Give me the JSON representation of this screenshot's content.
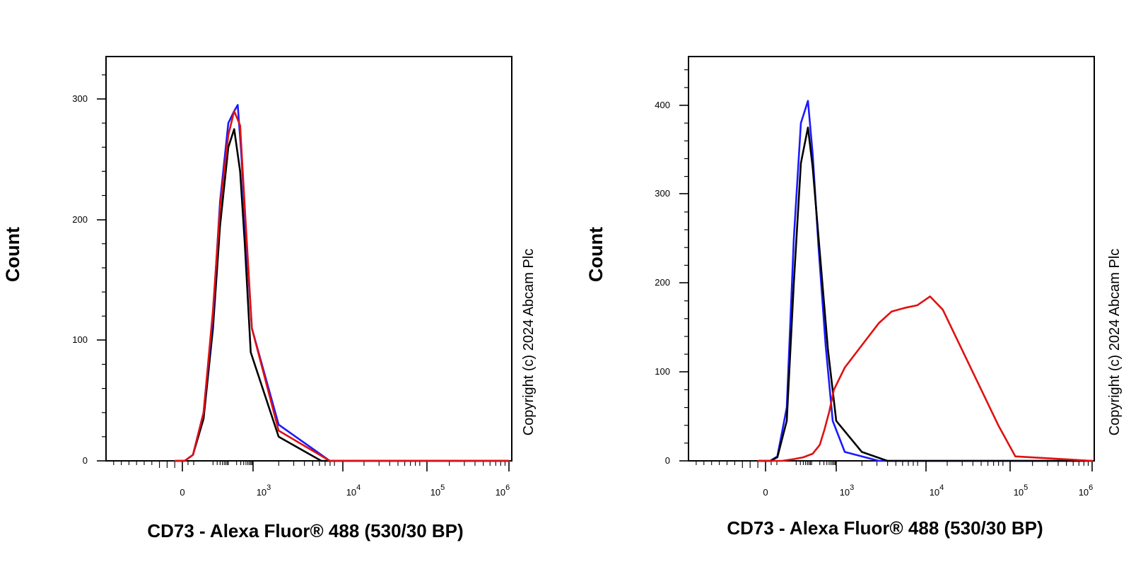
{
  "chart_data": [
    {
      "type": "line",
      "title": "",
      "xlabel": "CD73 - Alexa Fluor® 488 (530/30 BP)",
      "ylabel": "Count",
      "ylim": [
        0,
        330
      ],
      "y_ticks": [
        0,
        100,
        200,
        300
      ],
      "y_tick_labels": [
        "0",
        "100",
        "200",
        "300"
      ],
      "x_scale": "biexponential",
      "x_tick_labels": [
        {
          "label": "0",
          "pos": 0
        },
        {
          "base": "10",
          "exp": "3",
          "pos": 3
        },
        {
          "base": "10",
          "exp": "4",
          "pos": 4
        },
        {
          "base": "10",
          "exp": "5",
          "pos": 5
        },
        {
          "base": "10",
          "exp": "6",
          "pos": 6
        }
      ],
      "copyright": "Copyright (c) 2024 Abcam Plc",
      "grid": false,
      "series": [
        {
          "name": "black",
          "color": "#000000",
          "x": [
            -0.3,
            0.1,
            0.45,
            0.9,
            1.3,
            1.6,
            1.95,
            2.2,
            2.45,
            2.65,
            2.9,
            3.3,
            3.8,
            6
          ],
          "y": [
            0,
            0,
            5,
            35,
            110,
            195,
            260,
            275,
            240,
            180,
            90,
            20,
            0,
            0
          ]
        },
        {
          "name": "blue",
          "color": "#1a1aff",
          "x": [
            -0.3,
            0.1,
            0.45,
            0.9,
            1.3,
            1.6,
            1.95,
            2.2,
            2.35,
            2.5,
            2.7,
            2.95,
            3.3,
            3.9,
            6
          ],
          "y": [
            0,
            0,
            5,
            40,
            120,
            215,
            280,
            290,
            295,
            255,
            185,
            110,
            30,
            0,
            0
          ]
        },
        {
          "name": "red",
          "color": "#e01010",
          "x": [
            -0.3,
            0.1,
            0.45,
            0.9,
            1.3,
            1.6,
            1.95,
            2.2,
            2.45,
            2.65,
            2.95,
            3.3,
            3.9,
            6
          ],
          "y": [
            0,
            0,
            5,
            40,
            125,
            210,
            270,
            290,
            278,
            210,
            110,
            25,
            0,
            0
          ]
        }
      ]
    },
    {
      "type": "line",
      "title": "",
      "xlabel": "CD73 - Alexa Fluor® 488 (530/30 BP)",
      "ylabel": "Count",
      "ylim": [
        0,
        450
      ],
      "y_ticks": [
        0,
        100,
        200,
        300,
        400
      ],
      "y_tick_labels": [
        "0",
        "100",
        "200",
        "300",
        "400"
      ],
      "x_scale": "biexponential",
      "x_tick_labels": [
        {
          "label": "0",
          "pos": 0
        },
        {
          "base": "10",
          "exp": "3",
          "pos": 3
        },
        {
          "base": "10",
          "exp": "4",
          "pos": 4
        },
        {
          "base": "10",
          "exp": "5",
          "pos": 5
        },
        {
          "base": "10",
          "exp": "6",
          "pos": 6
        }
      ],
      "copyright": "Copyright (c) 2024 Abcam Plc",
      "grid": false,
      "series": [
        {
          "name": "blue",
          "color": "#1a1aff",
          "x": [
            -0.3,
            0.2,
            0.5,
            0.9,
            1.2,
            1.5,
            1.8,
            2.0,
            2.25,
            2.55,
            2.85,
            3.1,
            3.5,
            6
          ],
          "y": [
            0,
            0,
            5,
            60,
            250,
            380,
            405,
            345,
            240,
            130,
            45,
            10,
            0,
            0
          ]
        },
        {
          "name": "black",
          "color": "#000000",
          "x": [
            -0.3,
            0.2,
            0.5,
            0.9,
            1.2,
            1.5,
            1.8,
            2.0,
            2.3,
            2.65,
            3.0,
            3.3,
            3.6,
            6
          ],
          "y": [
            0,
            0,
            4,
            45,
            200,
            335,
            375,
            330,
            235,
            125,
            45,
            10,
            0,
            0
          ]
        },
        {
          "name": "red",
          "color": "#e01010",
          "x": [
            -0.3,
            0.7,
            1.2,
            1.6,
            2.0,
            2.3,
            2.5,
            2.7,
            2.9,
            3.1,
            3.3,
            3.5,
            3.65,
            3.8,
            3.95,
            4.1,
            4.25,
            4.4,
            4.6,
            4.9,
            5.1,
            6
          ],
          "y": [
            0,
            0,
            2,
            4,
            8,
            18,
            35,
            55,
            80,
            105,
            130,
            155,
            168,
            172,
            175,
            185,
            170,
            140,
            100,
            40,
            5,
            0
          ]
        }
      ]
    }
  ]
}
